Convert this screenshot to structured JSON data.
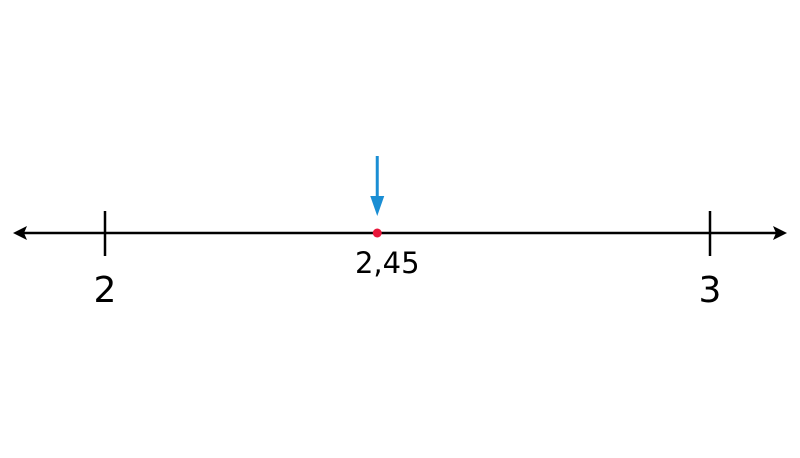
{
  "number_line": {
    "start_value": 2,
    "end_value": 3,
    "start_label": "2",
    "end_label": "3",
    "point_value": 2.45,
    "point_label": "2,45"
  },
  "colors": {
    "line": "#000000",
    "point": "#e8173b",
    "arrow": "#1a8ed4"
  }
}
